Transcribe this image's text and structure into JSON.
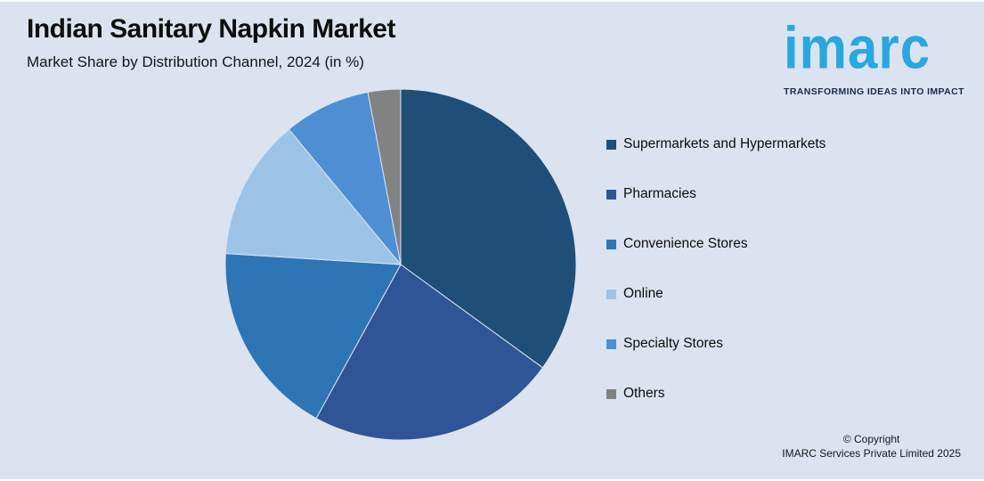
{
  "header": {
    "title": "Indian Sanitary Napkin Market",
    "subtitle": "Market Share by Distribution Channel, 2024 (in %)"
  },
  "brand": {
    "wordmark": "imarc",
    "tagline": "TRANSFORMING IDEAS INTO IMPACT",
    "blue": "#29a8e0",
    "navy": "#1b2a4a"
  },
  "footer": {
    "copyright_line1": "© Copyright",
    "copyright_line2": "IMARC Services Private Limited 2025"
  },
  "theme": {
    "background": "#dbe3f0",
    "text_color": "#0d0d0d"
  },
  "chart_data": {
    "type": "pie",
    "title": "Indian Sanitary Napkin Market",
    "subtitle": "Market Share by Distribution Channel, 2024 (in %)",
    "unit": "%",
    "categories": [
      "Supermarkets and Hypermarkets",
      "Pharmacies",
      "Convenience Stores",
      "Online",
      "Specialty Stores",
      "Others"
    ],
    "values": [
      35,
      23,
      18,
      13,
      8,
      3
    ],
    "colors": [
      "#1f4e79",
      "#2f5597",
      "#2e75b6",
      "#9dc3e6",
      "#4e8fd3",
      "#828282"
    ],
    "start_angle_deg": 0,
    "direction": "clockwise",
    "legend_position": "right",
    "data_labels_shown": false
  }
}
